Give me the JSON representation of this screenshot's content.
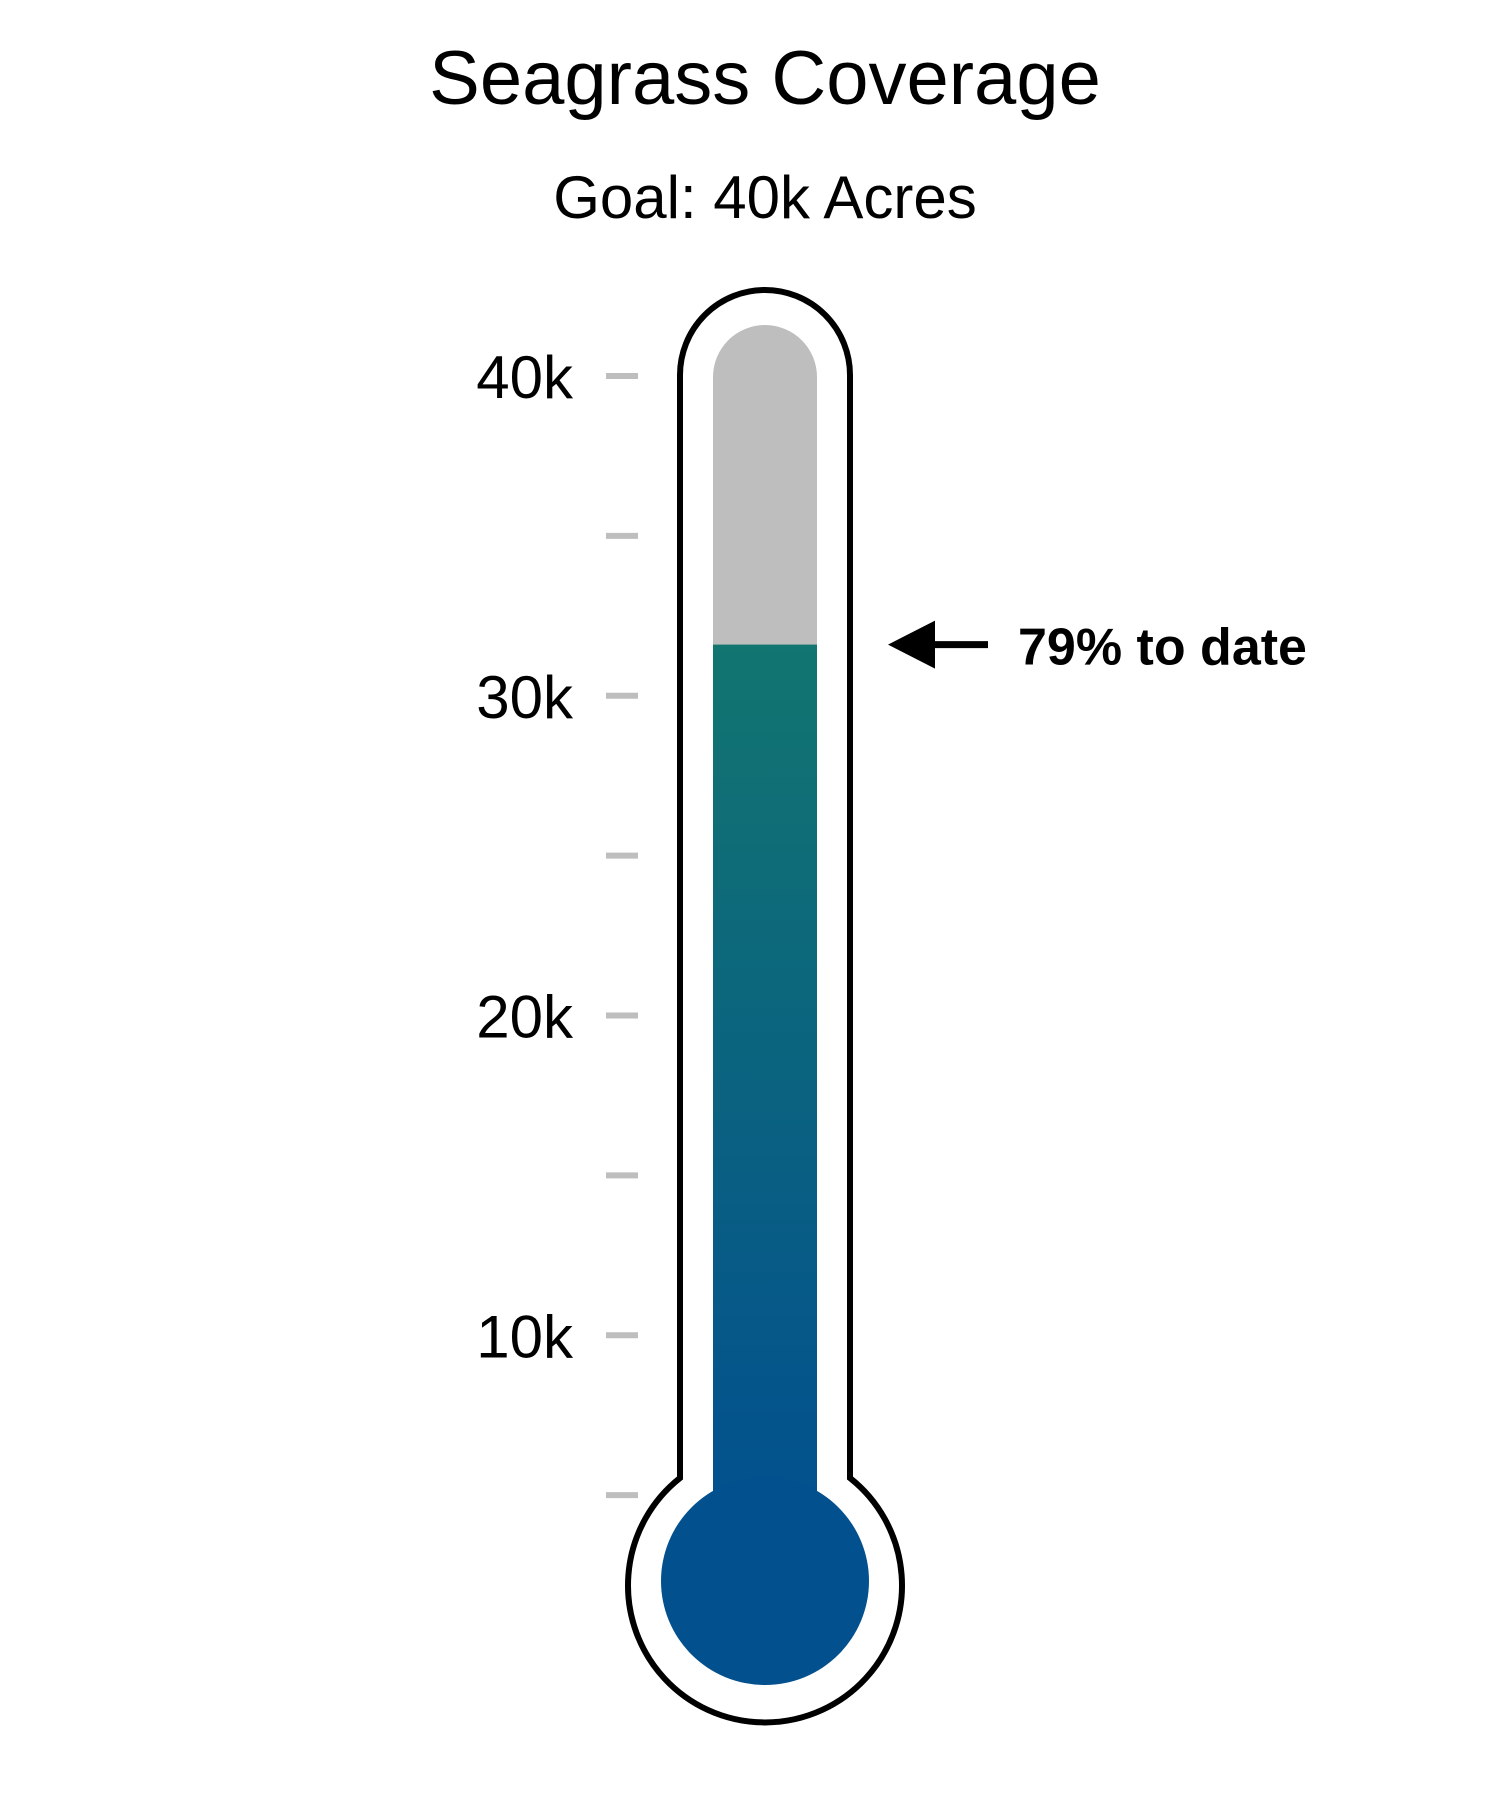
{
  "chart_data": {
    "type": "thermometer",
    "title": "Seagrass Coverage",
    "subtitle": "Goal: 40k Acres",
    "goal": 40000,
    "value": 31600,
    "ylim": [
      0,
      40000
    ],
    "major_ticks": [
      {
        "value": 10000,
        "label": "10k"
      },
      {
        "value": 20000,
        "label": "20k"
      },
      {
        "value": 30000,
        "label": "30k"
      },
      {
        "value": 40000,
        "label": "40k"
      }
    ],
    "minor_ticks": [
      5000,
      15000,
      25000,
      35000
    ],
    "annotation": "79% to date",
    "colors": {
      "fill_top": "#127570",
      "fill_bottom": "#02508f",
      "empty": "#bebebe",
      "outline": "#000000",
      "tick": "#bebebe"
    }
  }
}
